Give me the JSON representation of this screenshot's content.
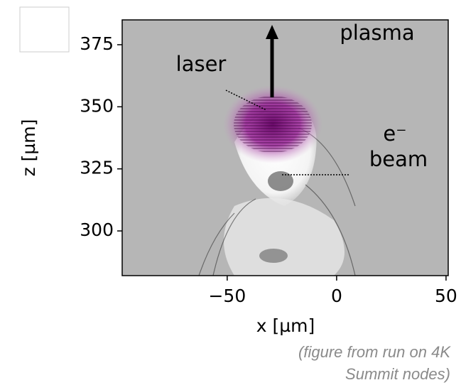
{
  "chart_data": {
    "type": "image",
    "xlabel": "x [µm]",
    "ylabel": "z [µm]",
    "xlim": [
      -98,
      51
    ],
    "ylim": [
      282,
      385
    ],
    "xticks": [
      {
        "value": -50,
        "label": "−50"
      },
      0,
      50
    ],
    "yticks": [
      300,
      325,
      350,
      375
    ],
    "annotations": [
      "laser",
      "plasma",
      "e⁻",
      "beam"
    ],
    "caption": [
      "(figure from run on 4K",
      "Summit nodes)"
    ]
  }
}
